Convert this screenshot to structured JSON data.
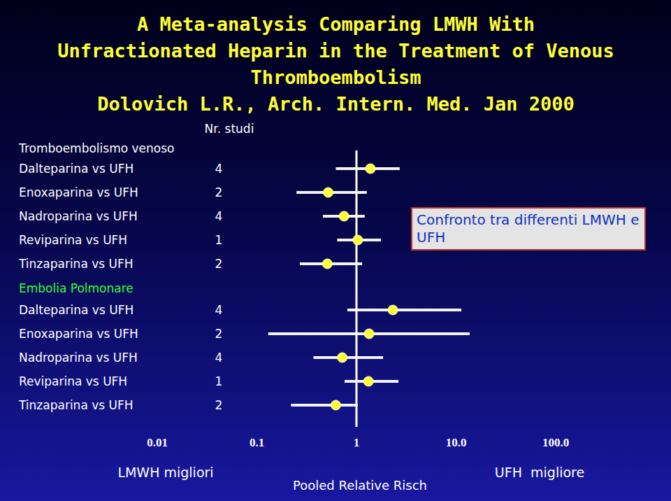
{
  "chart_data": {
    "type": "forest",
    "title": "A Meta-analysis Comparing LMWH With Unfractionated Heparin in the Treatment of Venous Thromboembolism",
    "subtitle": "Dolovich L.R., Arch. Intern. Med. Jan 2000",
    "studies_label": "Nr. studi",
    "categories": [
      "Dalteparina vs UFH",
      "Enoxaparina vs UFH",
      "Nadroparina vs UFH",
      "Reviparina vs UFH",
      "Tinzaparina vs UFH"
    ],
    "series": [
      {
        "name": "Tromboembolismo venoso",
        "color": "#ffff33",
        "values": [
          1.38,
          0.52,
          0.75,
          1.03,
          0.51
        ],
        "ci_low": [
          0.62,
          0.25,
          0.46,
          0.64,
          0.27
        ],
        "ci_high": [
          2.72,
          1.27,
          1.21,
          1.76,
          1.14
        ],
        "studies": [
          4,
          2,
          4,
          1,
          2
        ]
      },
      {
        "name": "Embolia Polmonare",
        "color": "#ffff33",
        "values": [
          2.32,
          1.34,
          0.72,
          1.32,
          0.62
        ],
        "ci_low": [
          0.81,
          0.13,
          0.37,
          0.76,
          0.22
        ],
        "ci_high": [
          11.3,
          13.7,
          1.85,
          2.64,
          1.03
        ],
        "studies": [
          4,
          2,
          4,
          1,
          2
        ]
      }
    ],
    "xlim": [
      0.01,
      100
    ],
    "xticks": [
      0.01,
      0.1,
      1,
      {
        "value": 10,
        "label": "10.0"
      },
      {
        "value": 100,
        "label": "100.0"
      }
    ],
    "log": "x",
    "reference_line": 1,
    "x_label": "Pooled Relative Risch",
    "left_label": "LMWH migliori",
    "right_label": "UFH  migliore",
    "annotation": "Confronto tra differenti LMWH e UFH"
  }
}
